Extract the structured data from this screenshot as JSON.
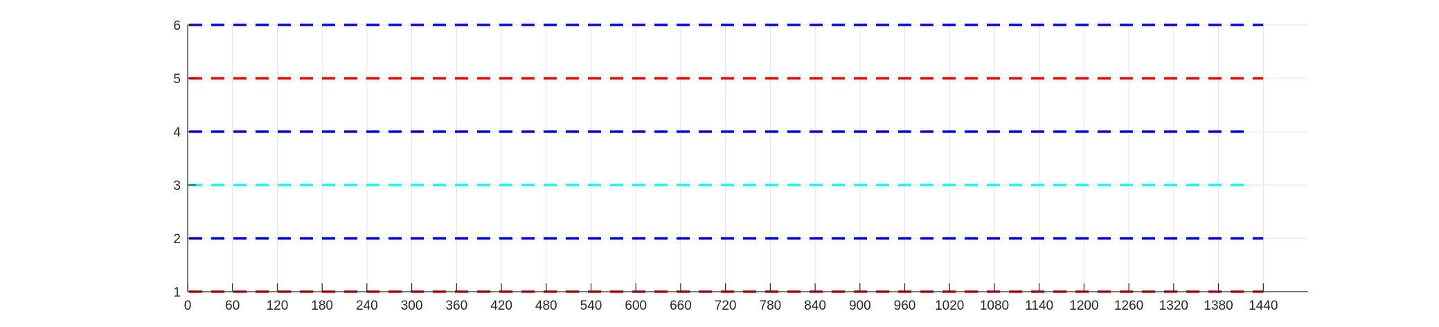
{
  "chart_data": {
    "type": "line",
    "title": "",
    "xlabel": "",
    "ylabel": "",
    "xlim": [
      0,
      1500
    ],
    "ylim": [
      1,
      6
    ],
    "grid": true,
    "xticks": [
      0,
      60,
      120,
      180,
      240,
      300,
      360,
      420,
      480,
      540,
      600,
      660,
      720,
      780,
      840,
      900,
      960,
      1020,
      1080,
      1140,
      1200,
      1260,
      1320,
      1380,
      1440
    ],
    "yticks": [
      1,
      2,
      3,
      4,
      5,
      6
    ],
    "series": [
      {
        "y": 1,
        "x": [
          0,
          1440
        ],
        "color": "#ff0000",
        "style": "dashed"
      },
      {
        "y": 2,
        "x": [
          0,
          1440
        ],
        "color": "#0000ff",
        "style": "dashed"
      },
      {
        "y": 3,
        "x": [
          0,
          1425
        ],
        "color": "#00ffff",
        "style": "dashed"
      },
      {
        "y": 4,
        "x": [
          0,
          1425
        ],
        "color": "#0000ff",
        "style": "dashed"
      },
      {
        "y": 5,
        "x": [
          0,
          1440
        ],
        "color": "#ff0000",
        "style": "dashed"
      },
      {
        "y": 6,
        "x": [
          0,
          1440
        ],
        "color": "#0000ff",
        "style": "dashed"
      }
    ]
  }
}
